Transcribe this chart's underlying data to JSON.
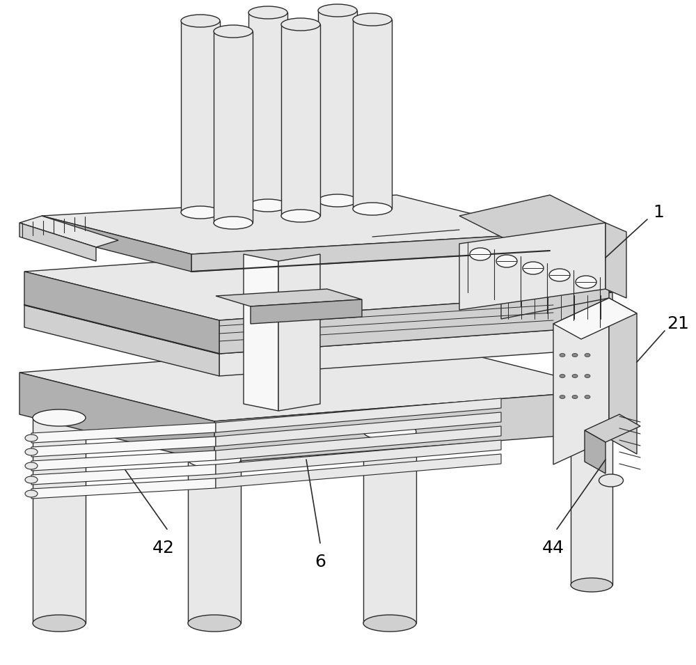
{
  "background_color": "#ffffff",
  "line_color": "#2a2a2a",
  "lw": 1.0,
  "lw_thick": 1.8,
  "label_fontsize": 18,
  "figsize": [
    10.0,
    9.55
  ],
  "dpi": 100,
  "colors": {
    "white": "#ffffff",
    "near_white": "#f8f8f8",
    "light_gray": "#e8e8e8",
    "mid_gray": "#d0d0d0",
    "dark_gray": "#b0b0b0",
    "very_light": "#f2f2f2"
  }
}
